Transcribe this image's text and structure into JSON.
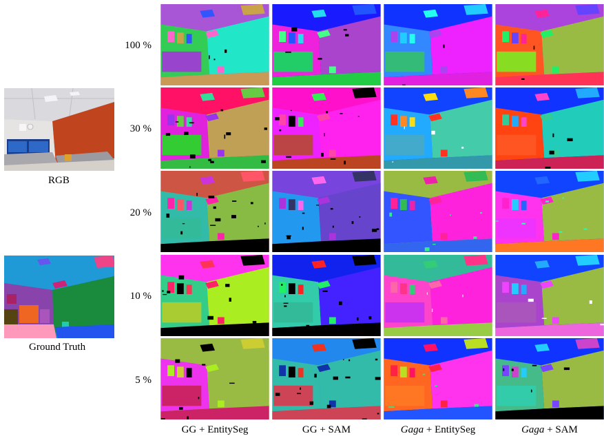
{
  "left_column": {
    "rgb_label": "RGB",
    "gt_label": "Ground Truth"
  },
  "rows": [
    {
      "label": "100 %"
    },
    {
      "label": "30 %"
    },
    {
      "label": "20 %"
    },
    {
      "label": "10 %"
    },
    {
      "label": "5 %"
    }
  ],
  "columns": [
    {
      "prefix": "GG",
      "suffix": " + EntitySeg"
    },
    {
      "prefix": "GG",
      "suffix": " + SAM"
    },
    {
      "prefix": "Gaga",
      "suffix": " + EntitySeg",
      "italic_prefix": true
    },
    {
      "prefix": "Gaga",
      "suffix": " + SAM",
      "italic_prefix": true
    }
  ],
  "palettes": [
    [
      {
        "ceiling": "#a855d6",
        "left": "#33cc55",
        "right": "#22e6c8",
        "floor": "#c89a55",
        "light1": "#c9a24a",
        "light2": "#3355ff",
        "light3": "#ff66cc",
        "panel": "#9944cc",
        "noise": "#000000",
        "noise_level": 0.05
      },
      {
        "ceiling": "#1a1aff",
        "left": "#ee22dd",
        "right": "#aa44cc",
        "floor": "#22cc44",
        "light1": "#2255ff",
        "light2": "#22ddee",
        "light3": "#44ff88",
        "panel": "#22cc66",
        "noise": "#000000",
        "noise_level": 0.08
      },
      {
        "ceiling": "#1133ff",
        "left": "#3388ff",
        "right": "#ee22ff",
        "floor": "#e022e0",
        "light1": "#22ccff",
        "light2": "#22ffee",
        "light3": "#aa44ee",
        "panel": "#33bb77",
        "noise": "#000000",
        "noise_level": 0.03
      },
      {
        "ceiling": "#aa44dd",
        "left": "#ff5522",
        "right": "#99bb44",
        "floor": "#ff3355",
        "light1": "#6644ff",
        "light2": "#ff2299",
        "light3": "#22ee66",
        "panel": "#88dd22",
        "noise": "#000000",
        "noise_level": 0.03
      }
    ],
    [
      {
        "ceiling": "#ff1166",
        "left": "#e022dd",
        "right": "#c0a055",
        "floor": "#33bb44",
        "light1": "#66cc44",
        "light2": "#33dd99",
        "light3": "#9933ee",
        "panel": "#33cc33",
        "noise": "#000000",
        "noise_level": 0.22
      },
      {
        "ceiling": "#ff11cc",
        "left": "#ee22ff",
        "right": "#ff22ee",
        "floor": "#bb4422",
        "light1": "#000000",
        "light2": "#33ee55",
        "light3": "#ff44aa",
        "panel": "#bb4444",
        "noise": "#000000",
        "noise_level": 0.18
      },
      {
        "ceiling": "#1144ff",
        "left": "#22aaff",
        "right": "#44ccaa",
        "floor": "#3399aa",
        "light1": "#ff8822",
        "light2": "#ffdd11",
        "light3": "#ff3322",
        "panel": "#44aacc",
        "noise": "#ffffff",
        "noise_level": 0.06
      },
      {
        "ceiling": "#1133ff",
        "left": "#ff4411",
        "right": "#22ccbb",
        "floor": "#cc2255",
        "light1": "#22aaff",
        "light2": "#ff44cc",
        "light3": "#33cc99",
        "panel": "#ff5522",
        "noise": "#000000",
        "noise_level": 0.06
      }
    ],
    [
      {
        "ceiling": "#cc5544",
        "left": "#33bbaa",
        "right": "#88bb44",
        "floor": "#000000",
        "light1": "#ff5566",
        "light2": "#cc33dd",
        "light3": "#ff22aa",
        "panel": "#33bb99",
        "noise": "#000000",
        "noise_level": 0.25
      },
      {
        "ceiling": "#7744dd",
        "left": "#2299ee",
        "right": "#6644cc",
        "floor": "#000000",
        "light1": "#333366",
        "light2": "#ff66ee",
        "light3": "#aa33dd",
        "panel": "#2299ee",
        "noise": "#000000",
        "noise_level": 0.2
      },
      {
        "ceiling": "#99bb44",
        "left": "#3355ff",
        "right": "#ff22dd",
        "floor": "#3366ee",
        "light1": "#33bb55",
        "light2": "#ee22aa",
        "light3": "#ff2299",
        "panel": "#3355ff",
        "noise": "#33ee88",
        "noise_level": 0.1
      },
      {
        "ceiling": "#1144ff",
        "left": "#ff33ee",
        "right": "#99bb44",
        "floor": "#ff7722",
        "light1": "#22ccff",
        "light2": "#2266ff",
        "light3": "#ff22cc",
        "panel": "#ee33ff",
        "noise": "#33ffaa",
        "noise_level": 0.1
      }
    ],
    [
      {
        "ceiling": "#ff33ee",
        "left": "#33cc88",
        "right": "#aaee22",
        "floor": "#000000",
        "light1": "#000000",
        "light2": "#ff3355",
        "light3": "#ff2266",
        "panel": "#aacc33",
        "noise": "#000000",
        "noise_level": 0.15
      },
      {
        "ceiling": "#1122ee",
        "left": "#33ccaa",
        "right": "#4422ff",
        "floor": "#000000",
        "light1": "#000000",
        "light2": "#ff2222",
        "light3": "#22ee66",
        "panel": "#33bb99",
        "noise": "#000000",
        "noise_level": 0.15
      },
      {
        "ceiling": "#33bb99",
        "left": "#ff44cc",
        "right": "#ff22dd",
        "floor": "#99cc44",
        "light1": "#ff3388",
        "light2": "#33cc77",
        "light3": "#ff66aa",
        "panel": "#cc33ee",
        "noise": "#ffffff",
        "noise_level": 0.05
      },
      {
        "ceiling": "#1144ff",
        "left": "#aa44cc",
        "right": "#99bb44",
        "floor": "#ee66dd",
        "light1": "#22ccff",
        "light2": "#22aaff",
        "light3": "#ee44ff",
        "panel": "#aa55bb",
        "noise": "#ffffff",
        "noise_level": 0.06
      }
    ],
    [
      {
        "ceiling": "#99bb44",
        "left": "#ee33ee",
        "right": "#99bb44",
        "floor": "#cc2266",
        "light1": "#cccc33",
        "light2": "#000000",
        "light3": "#aaee22",
        "panel": "#cc2266",
        "noise": "#000000",
        "noise_level": 0.12
      },
      {
        "ceiling": "#2288ee",
        "left": "#33bbaa",
        "right": "#33bbaa",
        "floor": "#cc4455",
        "light1": "#000000",
        "light2": "#ee3322",
        "light3": "#1133aa",
        "panel": "#cc4455",
        "noise": "#000000",
        "noise_level": 0.25
      },
      {
        "ceiling": "#1133ff",
        "left": "#ff6622",
        "right": "#ff33ee",
        "floor": "#2255ff",
        "light1": "#bbdd22",
        "light2": "#ff1166",
        "light3": "#ff2244",
        "panel": "#ff7722",
        "noise": "#33ee88",
        "noise_level": 0.06
      },
      {
        "ceiling": "#1133ff",
        "left": "#44bb88",
        "right": "#99bb44",
        "floor": "#000000",
        "light1": "#cc44cc",
        "light2": "#22ccff",
        "light3": "#7744ff",
        "panel": "#33ccaa",
        "noise": "#000000",
        "noise_level": 0.1
      }
    ]
  ]
}
